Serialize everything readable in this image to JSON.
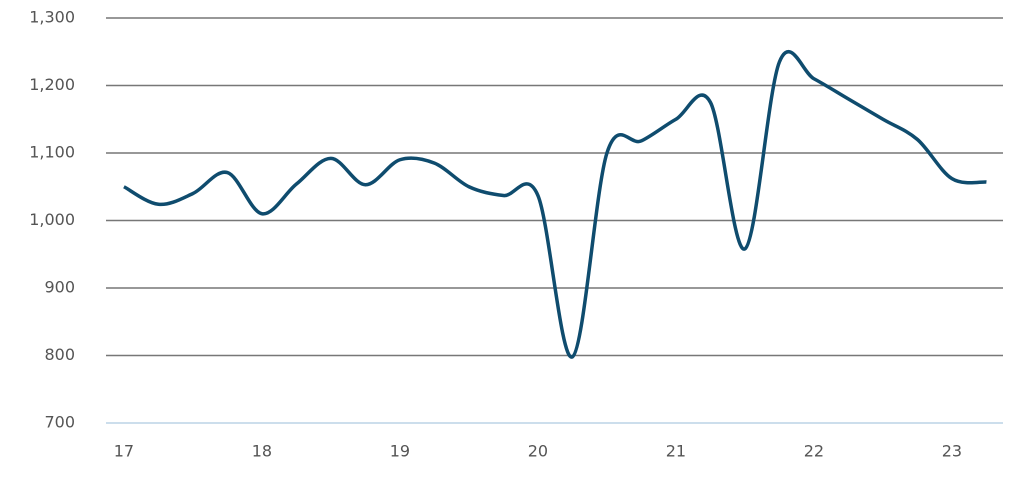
{
  "chart_data": {
    "type": "line",
    "x": [
      17,
      17.25,
      17.5,
      17.75,
      18,
      18.25,
      18.5,
      18.75,
      19,
      19.25,
      19.5,
      19.75,
      20,
      20.25,
      20.5,
      20.75,
      21,
      21.25,
      21.5,
      21.75,
      22,
      22.25,
      22.5,
      22.75,
      23,
      23.25
    ],
    "series": [
      {
        "color": "#0f4c6e",
        "values": [
          1050,
          1024,
          1040,
          1071,
          1010,
          1054,
          1092,
          1053,
          1090,
          1085,
          1050,
          1037,
          1037,
          798,
          1100,
          1118,
          1150,
          1175,
          958,
          1235,
          1210,
          1180,
          1150,
          1120,
          1062,
          1057
        ]
      }
    ],
    "xlim": [
      16.87,
      23.37
    ],
    "xticks": [
      17,
      18,
      19,
      20,
      21,
      22,
      23
    ],
    "ylim": [
      700,
      1300
    ],
    "yticks": [
      700,
      800,
      900,
      {
        "value": 1000,
        "label": "1,000"
      },
      {
        "value": 1100,
        "label": "1,100"
      },
      {
        "value": 1200,
        "label": "1,200"
      },
      {
        "value": 1300,
        "label": "1,300"
      }
    ],
    "grid": true
  }
}
